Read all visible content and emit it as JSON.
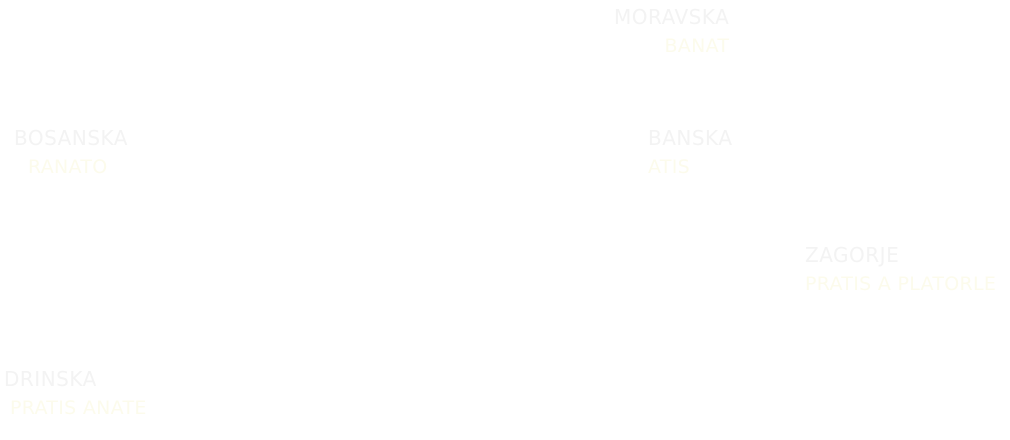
{
  "labels": [
    {
      "title": "MORAVSKA",
      "subtitle": "BANAT"
    },
    {
      "title": "BOSANSKA",
      "subtitle": "RANATO"
    },
    {
      "title": "BANSKA",
      "subtitle": "ATIS"
    },
    {
      "title": "ZAGORJE",
      "subtitle": "PRATIS A PLATORLE"
    },
    {
      "title": "DRINSKA",
      "subtitle": "PRATIS ANATE"
    }
  ]
}
